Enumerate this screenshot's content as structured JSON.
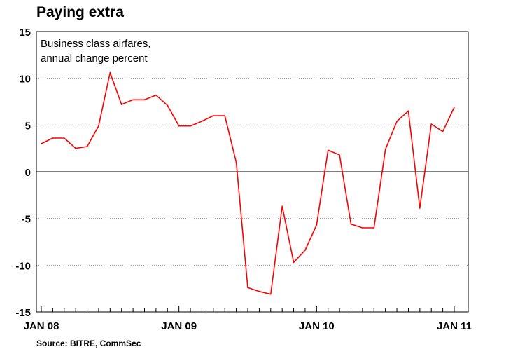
{
  "title": "Paying extra",
  "source": "Source: BITRE, CommSec",
  "chart_data": {
    "type": "line",
    "annotation": [
      "Business class airfares,",
      "annual change percent"
    ],
    "xlabel": "",
    "ylabel": "",
    "x_tick_labels": [
      "JAN 08",
      "JAN 09",
      "JAN 10",
      "JAN 11"
    ],
    "x_tick_months": [
      0,
      12,
      24,
      36
    ],
    "ylim": [
      -15,
      15
    ],
    "y_ticks": [
      15,
      10,
      5,
      0,
      -5,
      -10,
      -15
    ],
    "y_tick_labels": [
      "15",
      "10",
      "5",
      "0",
      "-5",
      "-10",
      "-15"
    ],
    "grid": "horizontal dotted",
    "series": [
      {
        "color": "#ff0000",
        "x": [
          0,
          1,
          2,
          3,
          4,
          5,
          6,
          7,
          8,
          9,
          10,
          11,
          12,
          13,
          14,
          15,
          16,
          17,
          18,
          19,
          20,
          21,
          22,
          23,
          24,
          25,
          26,
          27,
          28,
          29,
          30,
          31,
          32,
          33,
          34,
          35,
          36
        ],
        "values": [
          3.0,
          3.6,
          3.6,
          2.5,
          2.7,
          4.9,
          10.6,
          7.2,
          7.7,
          7.7,
          8.2,
          7.1,
          4.9,
          4.9,
          5.4,
          6.0,
          6.0,
          1.0,
          -12.4,
          -12.8,
          -13.1,
          -3.7,
          -9.7,
          -8.4,
          -5.7,
          2.3,
          1.8,
          -5.6,
          -6.0,
          -6.0,
          2.4,
          5.4,
          6.5,
          -3.9,
          5.1,
          4.3,
          6.9
        ]
      }
    ]
  }
}
